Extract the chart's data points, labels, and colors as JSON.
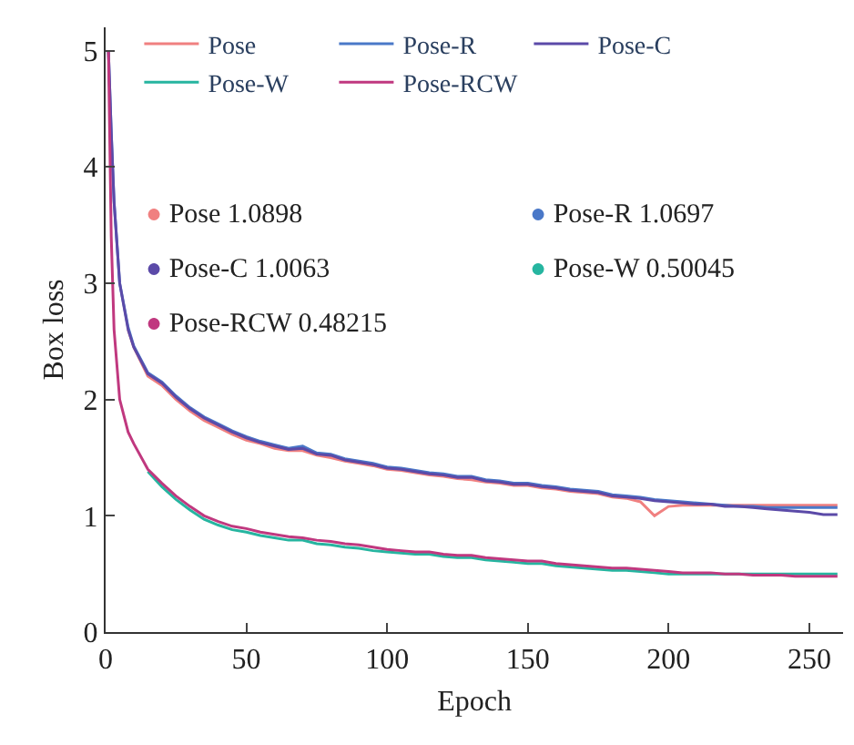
{
  "chart_data": {
    "type": "line",
    "xlabel": "Epoch",
    "ylabel": "Box loss",
    "x": [
      1,
      2,
      3,
      5,
      8,
      10,
      15,
      20,
      25,
      30,
      35,
      40,
      45,
      50,
      55,
      60,
      65,
      70,
      75,
      80,
      85,
      90,
      95,
      100,
      105,
      110,
      115,
      120,
      125,
      130,
      135,
      140,
      145,
      150,
      155,
      160,
      165,
      170,
      175,
      180,
      185,
      190,
      195,
      200,
      205,
      210,
      215,
      220,
      225,
      230,
      235,
      240,
      245,
      250,
      255,
      260
    ],
    "series": [
      {
        "name": "Pose",
        "color": "#f08080",
        "values": [
          null,
          null,
          null,
          null,
          2.6,
          2.45,
          2.2,
          2.12,
          2.0,
          1.9,
          1.82,
          1.76,
          1.7,
          1.65,
          1.62,
          1.58,
          1.56,
          1.56,
          1.52,
          1.5,
          1.47,
          1.45,
          1.43,
          1.4,
          1.39,
          1.37,
          1.35,
          1.34,
          1.32,
          1.31,
          1.29,
          1.28,
          1.26,
          1.26,
          1.24,
          1.23,
          1.21,
          1.2,
          1.19,
          1.16,
          1.15,
          1.12,
          1.0,
          1.08,
          1.09,
          1.09,
          1.09,
          1.09,
          1.09,
          1.09,
          1.09,
          1.09,
          1.09,
          1.09,
          1.09,
          1.09
        ]
      },
      {
        "name": "Pose-R",
        "color": "#4a78c8",
        "values": [
          5.0,
          4.3,
          3.7,
          3.0,
          2.62,
          2.46,
          2.23,
          2.15,
          2.03,
          1.93,
          1.85,
          1.79,
          1.73,
          1.68,
          1.64,
          1.61,
          1.58,
          1.6,
          1.54,
          1.53,
          1.49,
          1.47,
          1.45,
          1.42,
          1.41,
          1.39,
          1.37,
          1.36,
          1.34,
          1.34,
          1.31,
          1.3,
          1.28,
          1.28,
          1.26,
          1.25,
          1.23,
          1.22,
          1.21,
          1.18,
          1.17,
          1.16,
          1.14,
          1.13,
          1.12,
          1.11,
          1.1,
          1.09,
          1.08,
          1.08,
          1.07,
          1.07,
          1.07,
          1.07,
          1.07,
          1.07
        ]
      },
      {
        "name": "Pose-C",
        "color": "#5b4aa8",
        "values": [
          5.0,
          4.3,
          3.7,
          3.0,
          2.6,
          2.45,
          2.22,
          2.14,
          2.02,
          1.92,
          1.84,
          1.78,
          1.72,
          1.67,
          1.63,
          1.6,
          1.57,
          1.58,
          1.53,
          1.52,
          1.48,
          1.46,
          1.44,
          1.41,
          1.4,
          1.38,
          1.36,
          1.35,
          1.33,
          1.33,
          1.3,
          1.29,
          1.27,
          1.27,
          1.25,
          1.24,
          1.22,
          1.21,
          1.2,
          1.17,
          1.16,
          1.15,
          1.13,
          1.12,
          1.11,
          1.1,
          1.1,
          1.08,
          1.08,
          1.07,
          1.06,
          1.05,
          1.04,
          1.03,
          1.01,
          1.01
        ]
      },
      {
        "name": "Pose-W",
        "color": "#26b5a0",
        "values": [
          null,
          null,
          null,
          null,
          null,
          null,
          1.38,
          1.25,
          1.14,
          1.05,
          0.97,
          0.92,
          0.88,
          0.86,
          0.83,
          0.81,
          0.79,
          0.79,
          0.76,
          0.75,
          0.73,
          0.72,
          0.7,
          0.69,
          0.68,
          0.67,
          0.67,
          0.65,
          0.64,
          0.64,
          0.62,
          0.61,
          0.6,
          0.59,
          0.59,
          0.57,
          0.56,
          0.55,
          0.54,
          0.53,
          0.53,
          0.52,
          0.51,
          0.5,
          0.5,
          0.5,
          0.5,
          0.5,
          0.5,
          0.5,
          0.5,
          0.5,
          0.5,
          0.5,
          0.5,
          0.5
        ]
      },
      {
        "name": "Pose-RCW",
        "color": "#c0387f",
        "values": [
          5.0,
          3.4,
          2.6,
          2.0,
          1.72,
          1.62,
          1.4,
          1.28,
          1.17,
          1.08,
          1.0,
          0.95,
          0.91,
          0.89,
          0.86,
          0.84,
          0.82,
          0.81,
          0.79,
          0.78,
          0.76,
          0.75,
          0.73,
          0.71,
          0.7,
          0.69,
          0.69,
          0.67,
          0.66,
          0.66,
          0.64,
          0.63,
          0.62,
          0.61,
          0.61,
          0.59,
          0.58,
          0.57,
          0.56,
          0.55,
          0.55,
          0.54,
          0.53,
          0.52,
          0.51,
          0.51,
          0.51,
          0.5,
          0.5,
          0.49,
          0.49,
          0.49,
          0.48,
          0.48,
          0.48,
          0.48
        ]
      }
    ],
    "annotations": [
      "● Pose 1.0898",
      "● Pose-R 1.0697",
      "● Pose-C 1.0063",
      "● Pose-W 0.50045",
      "● Pose-RCW 0.48215"
    ],
    "xlim": [
      0,
      262
    ],
    "xticks": [
      0,
      50,
      100,
      150,
      200,
      250
    ],
    "ylim": [
      0,
      5.2
    ],
    "yticks": [
      0,
      1,
      2,
      3,
      4,
      5
    ],
    "grid": false,
    "legend": "top left",
    "marker": "none",
    "line_style": "solid"
  }
}
